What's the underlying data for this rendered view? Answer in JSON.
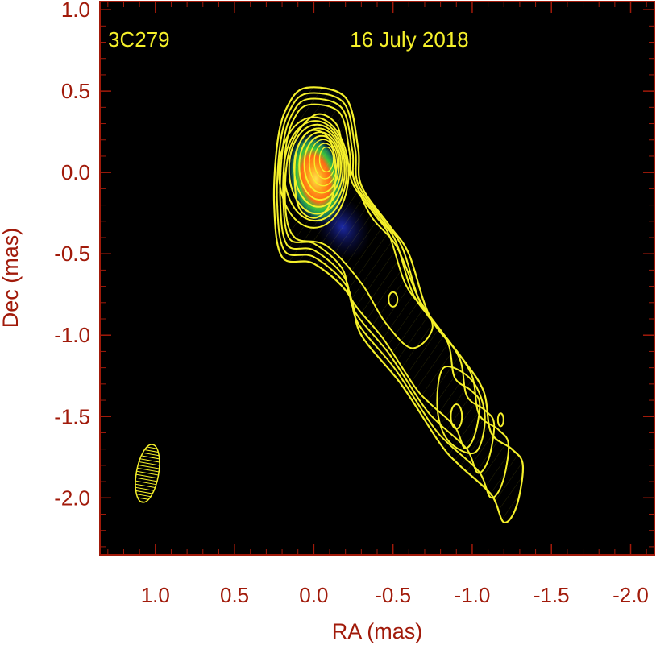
{
  "chart_data": {
    "type": "contour map",
    "source_label": "3C279",
    "date_label": "16 July 2018",
    "xlabel": "RA (mas)",
    "ylabel": "Dec (mas)",
    "x_axis_reversed": true,
    "xlim": [
      1.35,
      -2.15
    ],
    "ylim": [
      -2.35,
      1.05
    ],
    "x_ticks": [
      1.0,
      0.5,
      0.0,
      -0.5,
      -1.0,
      -1.5,
      -2.0
    ],
    "x_tick_labels": [
      "1.0",
      "0.5",
      "0.0",
      "-0.5",
      "-1.0",
      "-1.5",
      "-2.0"
    ],
    "y_ticks": [
      1.0,
      0.5,
      0.0,
      -0.5,
      -1.0,
      -1.5,
      -2.0
    ],
    "y_tick_labels": [
      "1.0",
      "0.5",
      "0.0",
      "-0.5",
      "-1.0",
      "-1.5",
      "-2.0"
    ],
    "background_color": "#000000",
    "contour_color": "#f5f02a",
    "axis_color": "#a11a0a",
    "beam": {
      "ra": 1.05,
      "dec": -1.85,
      "major_mas": 0.36,
      "minor_mas": 0.14,
      "pa_deg": 10
    },
    "peak": {
      "ra": 0.0,
      "dec": 0.0
    },
    "outer_contour": [
      [
        0.05,
        0.52
      ],
      [
        -0.2,
        0.46
      ],
      [
        -0.28,
        0.15
      ],
      [
        -0.3,
        -0.08
      ],
      [
        -0.48,
        -0.33
      ],
      [
        -0.6,
        -0.5
      ],
      [
        -0.73,
        -0.88
      ],
      [
        -0.92,
        -1.12
      ],
      [
        -1.07,
        -1.34
      ],
      [
        -1.12,
        -1.6
      ],
      [
        -1.25,
        -1.7
      ],
      [
        -1.32,
        -1.8
      ],
      [
        -1.28,
        -2.05
      ],
      [
        -1.2,
        -2.15
      ],
      [
        -1.12,
        -1.98
      ],
      [
        -0.92,
        -1.8
      ],
      [
        -0.8,
        -1.67
      ],
      [
        -0.55,
        -1.3
      ],
      [
        -0.3,
        -1.0
      ],
      [
        -0.22,
        -0.75
      ],
      [
        0.0,
        -0.56
      ],
      [
        0.2,
        -0.52
      ],
      [
        0.25,
        -0.2
      ],
      [
        0.23,
        0.18
      ],
      [
        0.17,
        0.4
      ]
    ],
    "inner_contours": [
      [
        [
          0.0,
          0.35
        ],
        [
          -0.14,
          0.3
        ],
        [
          -0.2,
          0.1
        ],
        [
          -0.35,
          -0.25
        ],
        [
          -0.52,
          -0.45
        ],
        [
          -0.65,
          -0.75
        ],
        [
          -0.75,
          -0.95
        ],
        [
          -0.62,
          -1.08
        ],
        [
          -0.45,
          -0.92
        ],
        [
          -0.3,
          -0.68
        ],
        [
          -0.08,
          -0.45
        ],
        [
          0.12,
          -0.4
        ],
        [
          0.18,
          -0.2
        ],
        [
          0.15,
          0.15
        ]
      ],
      [
        [
          -0.82,
          -1.2
        ],
        [
          -1.0,
          -1.28
        ],
        [
          -1.08,
          -1.5
        ],
        [
          -1.02,
          -1.72
        ],
        [
          -0.85,
          -1.65
        ],
        [
          -0.78,
          -1.45
        ]
      ],
      [
        [
          0.0,
          0.26
        ],
        [
          -0.1,
          0.2
        ],
        [
          -0.14,
          0.0
        ],
        [
          -0.1,
          -0.2
        ],
        [
          0.0,
          -0.28
        ],
        [
          0.1,
          -0.2
        ],
        [
          0.12,
          0.05
        ],
        [
          0.08,
          0.2
        ]
      ]
    ],
    "small_contours": [
      {
        "ra": -0.5,
        "dec": -0.78,
        "r_ra": 0.028,
        "r_dec": 0.045
      },
      {
        "ra": -0.9,
        "dec": -1.5,
        "r_ra": 0.035,
        "r_dec": 0.075
      },
      {
        "ra": -1.18,
        "dec": -1.52,
        "r_ra": 0.018,
        "r_dec": 0.04
      }
    ]
  }
}
